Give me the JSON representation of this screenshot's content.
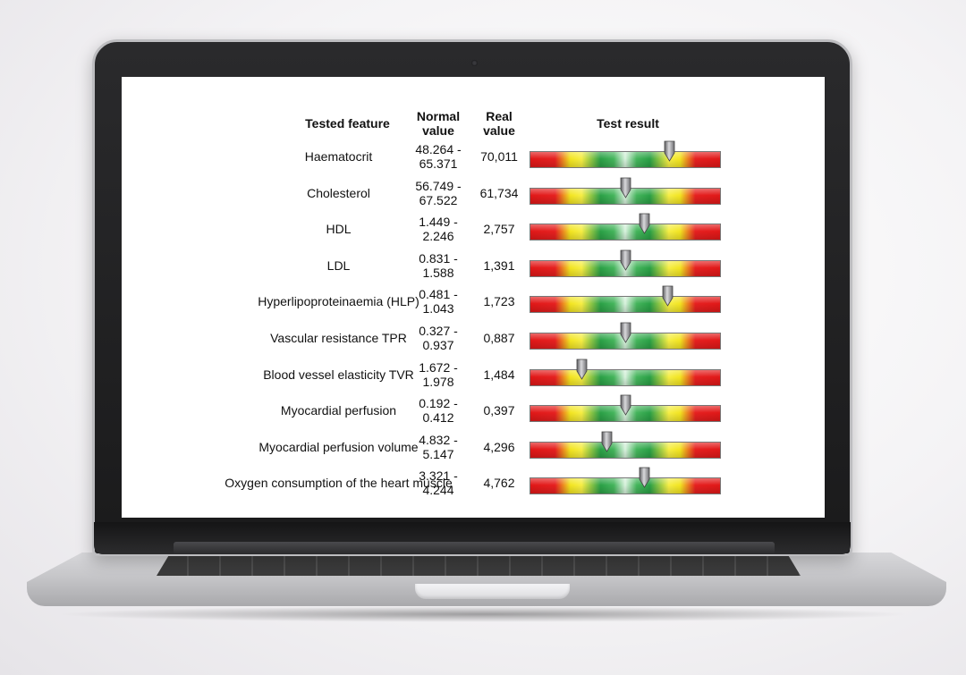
{
  "table": {
    "headers": {
      "feature": "Tested feature",
      "normal_line1": "Normal",
      "normal_line2": "value",
      "real_line1": "Real",
      "real_line2": "value",
      "result": "Test result"
    },
    "rows": [
      {
        "feature": "Haematocrit",
        "normal": "48.264 -\n65.371",
        "real": "70,011",
        "marker_fraction": 0.73
      },
      {
        "feature": "Cholesterol",
        "normal": "56.749 -\n67.522",
        "real": "61,734",
        "marker_fraction": 0.5
      },
      {
        "feature": "HDL",
        "normal": "1.449 -\n2.246",
        "real": "2,757",
        "marker_fraction": 0.6
      },
      {
        "feature": "LDL",
        "normal": "0.831 -\n1.588",
        "real": "1,391",
        "marker_fraction": 0.5
      },
      {
        "feature": "Hyperlipoproteinaemia (HLP)",
        "normal": "0.481 -\n1.043",
        "real": "1,723",
        "marker_fraction": 0.72
      },
      {
        "feature": "Vascular resistance TPR",
        "normal": "0.327 -\n0.937",
        "real": "0,887",
        "marker_fraction": 0.5
      },
      {
        "feature": "Blood vessel elasticity TVR",
        "normal": "1.672 -\n1.978",
        "real": "1,484",
        "marker_fraction": 0.27
      },
      {
        "feature": "Myocardial perfusion",
        "normal": "0.192 -\n0.412",
        "real": "0,397",
        "marker_fraction": 0.5
      },
      {
        "feature": "Myocardial perfusion volume",
        "normal": "4.832 -\n5.147",
        "real": "4,296",
        "marker_fraction": 0.4
      },
      {
        "feature": "Oxygen consumption of the heart muscle",
        "normal": "3.321 -\n4.244",
        "real": "4,762",
        "marker_fraction": 0.6
      }
    ]
  },
  "colors": {
    "gauge_red": "#e01818",
    "gauge_yellow": "#f2e420",
    "gauge_green": "#2aa046",
    "marker": "#8a8a8e"
  }
}
